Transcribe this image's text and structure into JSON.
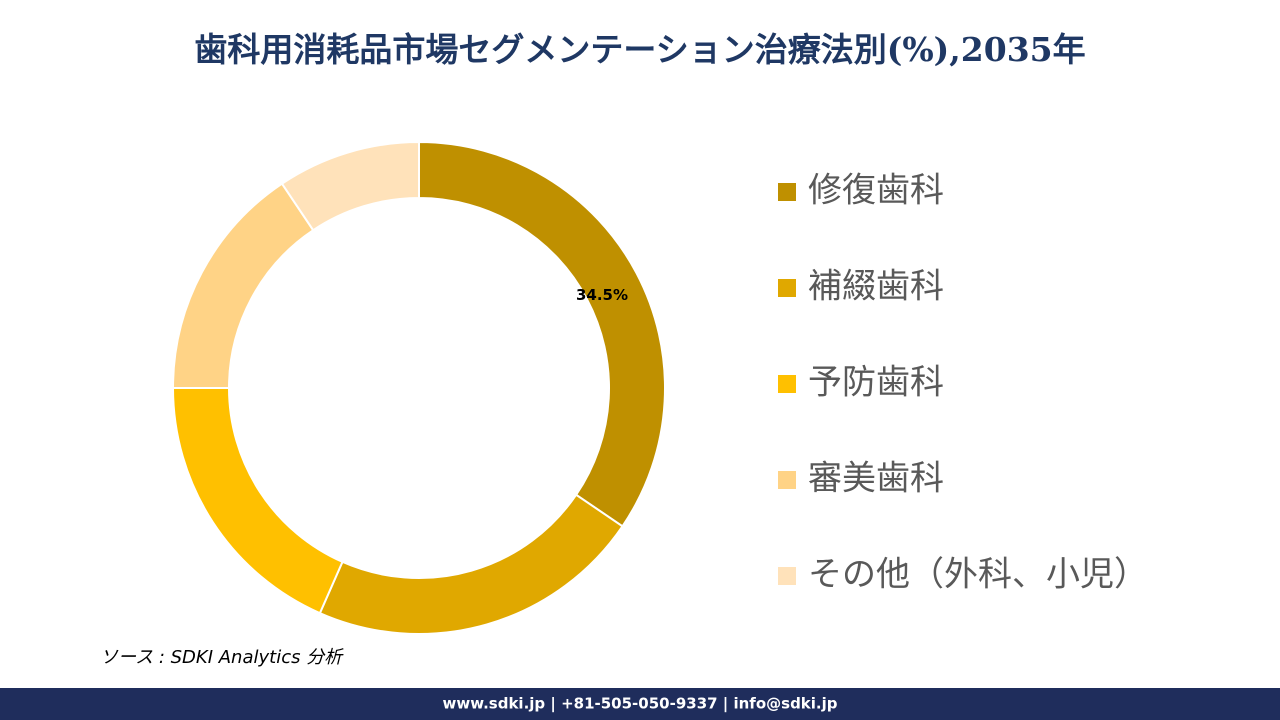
{
  "chart_data": {
    "type": "donut",
    "title": "歯科用消耗品市場セグメンテーション治療法別(%),2035年",
    "categories": [
      "修復歯科",
      "補綴歯科",
      "予防歯科",
      "審美歯科",
      "その他（外科、小児）"
    ],
    "values": [
      34.5,
      22.1,
      18.4,
      15.6,
      9.4
    ],
    "value_labels": [
      "34.5%",
      null,
      null,
      null,
      null
    ],
    "colors": [
      "#BF9000",
      "#E0A800",
      "#FFC000",
      "#FFD386",
      "#FFE2BA"
    ],
    "legend": "right",
    "source": "ソース : SDKI Analytics 分析"
  },
  "footer": {
    "text": "www.sdki.jp | +81-505-050-9337 | info@sdki.jp"
  }
}
